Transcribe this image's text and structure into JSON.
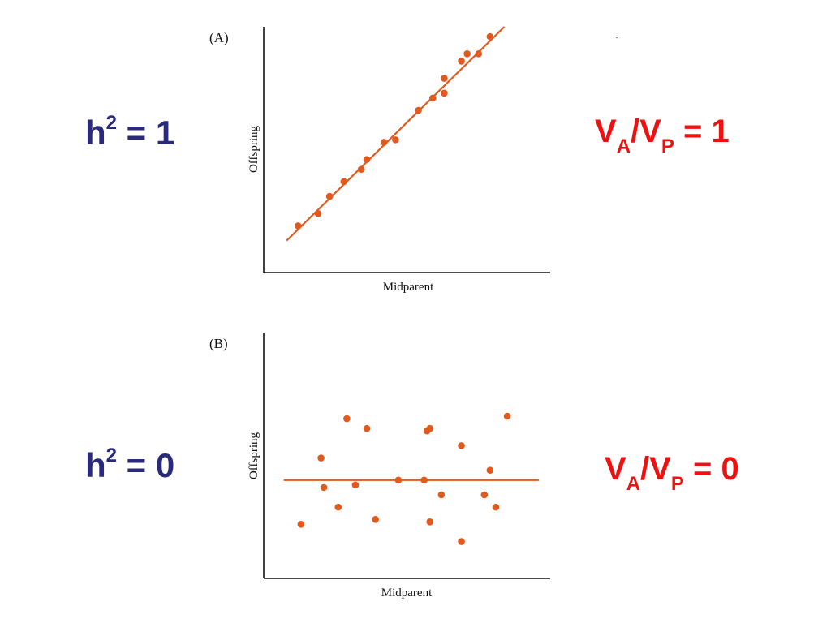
{
  "slide": {
    "colors": {
      "equation_left": "#2a2a7a",
      "equation_right": "#ee1111",
      "data": "#e05a1e",
      "axis": "#111111"
    }
  },
  "equations": {
    "top_left": {
      "base": "h",
      "sup": "2",
      "rest": " = 1"
    },
    "top_right": {
      "v1": "V",
      "sub1": "A",
      "slash": "/",
      "v2": "V",
      "sub2": "P",
      "rest": " = 1"
    },
    "bottom_left": {
      "base": "h",
      "sup": "2",
      "rest": " = 0"
    },
    "bottom_right": {
      "v1": "V",
      "sub1": "A",
      "slash": "/",
      "v2": "V",
      "sub2": "P",
      "rest": " = 0"
    }
  },
  "chart_data": [
    {
      "type": "scatter",
      "panel_label": "(A)",
      "xlabel": "Midparent",
      "ylabel": "Offspring",
      "xlim": [
        0,
        10
      ],
      "ylim": [
        0,
        10
      ],
      "grid": false,
      "points": [
        {
          "x": 1.2,
          "y": 1.9
        },
        {
          "x": 1.9,
          "y": 2.4
        },
        {
          "x": 2.3,
          "y": 3.1
        },
        {
          "x": 2.8,
          "y": 3.7
        },
        {
          "x": 3.4,
          "y": 4.2
        },
        {
          "x": 3.6,
          "y": 4.6
        },
        {
          "x": 4.2,
          "y": 5.3
        },
        {
          "x": 4.6,
          "y": 5.4
        },
        {
          "x": 5.4,
          "y": 6.6
        },
        {
          "x": 5.9,
          "y": 7.1
        },
        {
          "x": 6.3,
          "y": 7.3
        },
        {
          "x": 6.3,
          "y": 7.9
        },
        {
          "x": 6.9,
          "y": 8.6
        },
        {
          "x": 7.1,
          "y": 8.9
        },
        {
          "x": 7.5,
          "y": 8.9
        },
        {
          "x": 7.9,
          "y": 9.6
        }
      ],
      "fit_line": {
        "x": [
          0.8,
          8.4
        ],
        "y": [
          1.3,
          10.0
        ]
      }
    },
    {
      "type": "scatter",
      "panel_label": "(B)",
      "xlabel": "Midparent",
      "ylabel": "Offspring",
      "xlim": [
        0,
        10
      ],
      "ylim": [
        0,
        10
      ],
      "grid": false,
      "points": [
        {
          "x": 1.3,
          "y": 2.2
        },
        {
          "x": 2.1,
          "y": 3.7
        },
        {
          "x": 2.6,
          "y": 2.9
        },
        {
          "x": 2.0,
          "y": 4.9
        },
        {
          "x": 2.9,
          "y": 6.5
        },
        {
          "x": 3.2,
          "y": 3.8
        },
        {
          "x": 3.6,
          "y": 6.1
        },
        {
          "x": 3.9,
          "y": 2.4
        },
        {
          "x": 4.7,
          "y": 4.0
        },
        {
          "x": 5.6,
          "y": 4.0
        },
        {
          "x": 5.7,
          "y": 6.0
        },
        {
          "x": 5.8,
          "y": 6.1
        },
        {
          "x": 5.8,
          "y": 2.3
        },
        {
          "x": 6.2,
          "y": 3.4
        },
        {
          "x": 6.9,
          "y": 5.4
        },
        {
          "x": 6.9,
          "y": 1.5
        },
        {
          "x": 7.7,
          "y": 3.4
        },
        {
          "x": 7.9,
          "y": 4.4
        },
        {
          "x": 8.1,
          "y": 2.9
        },
        {
          "x": 8.5,
          "y": 6.6
        }
      ],
      "fit_line": {
        "x": [
          0.7,
          9.6
        ],
        "y": [
          4.0,
          4.0
        ]
      }
    }
  ]
}
